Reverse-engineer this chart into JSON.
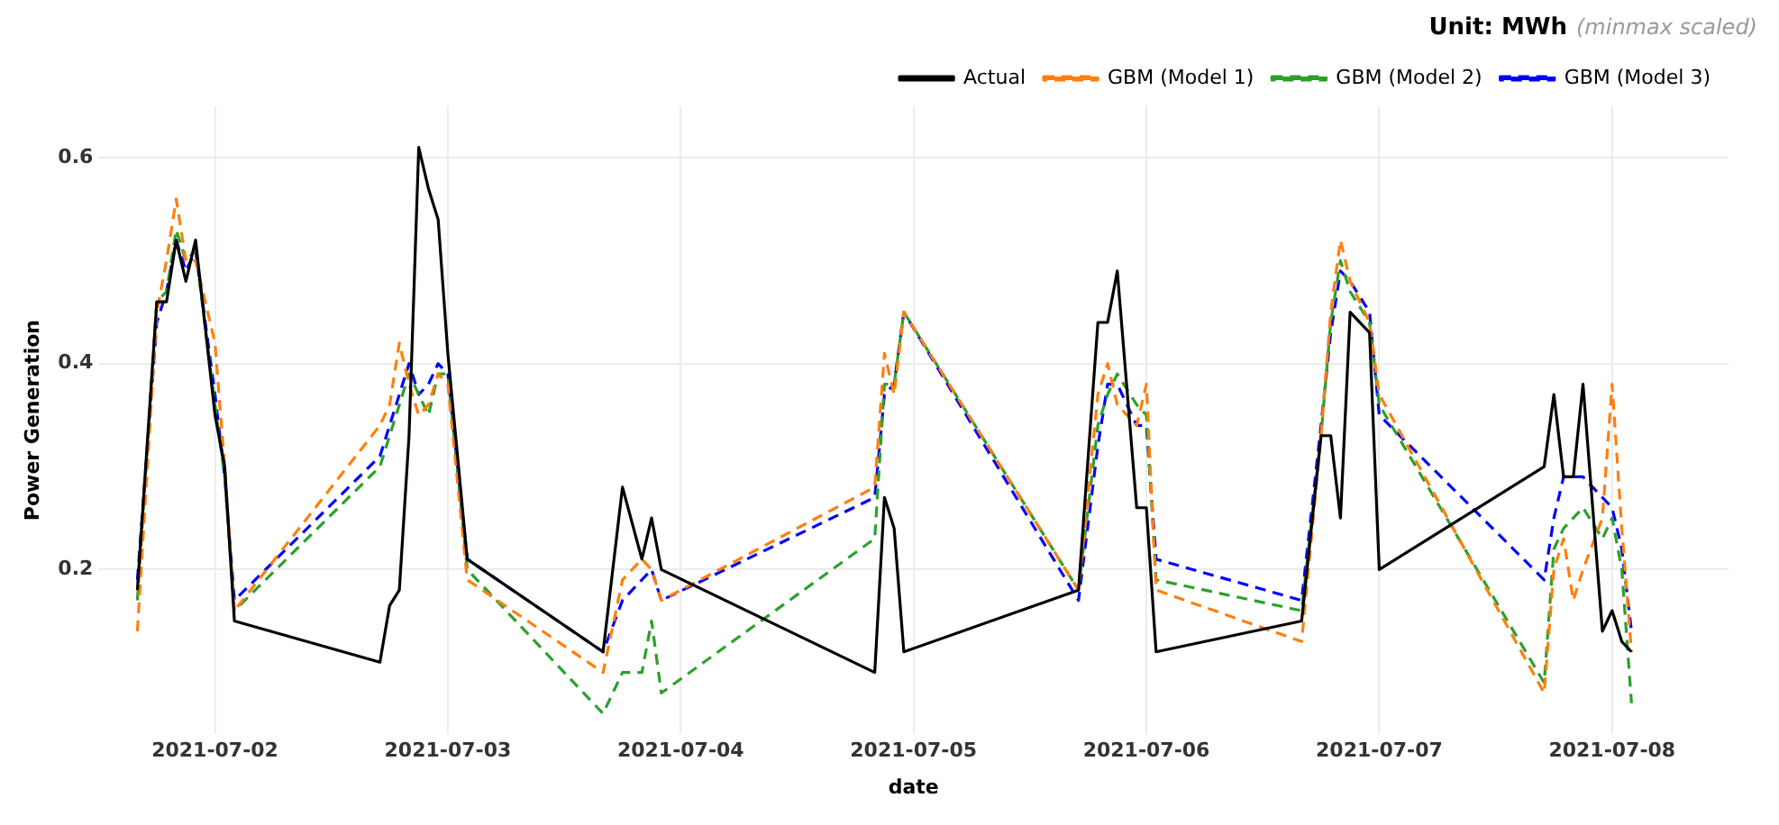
{
  "chart_data": {
    "type": "line",
    "title": "Unit: MWh",
    "subtitle": "(minmax scaled)",
    "xlabel": "date",
    "ylabel": "Power Generation",
    "x": [
      "2021-07-01T16:00",
      "2021-07-01T18:00",
      "2021-07-01T19:00",
      "2021-07-01T20:00",
      "2021-07-01T21:00",
      "2021-07-01T22:00",
      "2021-07-02T00:00",
      "2021-07-02T01:00",
      "2021-07-02T02:00",
      "2021-07-02T17:00",
      "2021-07-02T18:00",
      "2021-07-02T19:00",
      "2021-07-02T20:00",
      "2021-07-02T21:00",
      "2021-07-02T22:00",
      "2021-07-02T23:00",
      "2021-07-03T00:00",
      "2021-07-03T02:00",
      "2021-07-03T16:00",
      "2021-07-03T18:00",
      "2021-07-03T20:00",
      "2021-07-03T21:00",
      "2021-07-03T22:00",
      "2021-07-04T20:00",
      "2021-07-04T21:00",
      "2021-07-04T22:00",
      "2021-07-04T23:00",
      "2021-07-05T17:00",
      "2021-07-05T19:00",
      "2021-07-05T20:00",
      "2021-07-05T21:00",
      "2021-07-05T23:00",
      "2021-07-06T00:00",
      "2021-07-06T01:00",
      "2021-07-06T16:00",
      "2021-07-06T18:00",
      "2021-07-06T19:00",
      "2021-07-06T20:00",
      "2021-07-06T21:00",
      "2021-07-06T23:00",
      "2021-07-07T00:00",
      "2021-07-07T17:00",
      "2021-07-07T18:00",
      "2021-07-07T19:00",
      "2021-07-07T20:00",
      "2021-07-07T21:00",
      "2021-07-07T23:00",
      "2021-07-08T00:00",
      "2021-07-08T01:00",
      "2021-07-08T02:00"
    ],
    "series": [
      {
        "name": "Actual",
        "color": "#000000",
        "line_style": "solid",
        "values": [
          0.18,
          0.46,
          0.46,
          0.52,
          0.48,
          0.52,
          0.35,
          0.3,
          0.15,
          0.11,
          0.165,
          0.18,
          0.33,
          0.61,
          0.57,
          0.54,
          0.41,
          0.21,
          0.12,
          0.28,
          0.21,
          0.25,
          0.2,
          0.1,
          0.27,
          0.24,
          0.12,
          0.18,
          0.44,
          0.44,
          0.49,
          0.26,
          0.26,
          0.12,
          0.15,
          0.33,
          0.33,
          0.25,
          0.45,
          0.43,
          0.2,
          0.3,
          0.37,
          0.29,
          0.29,
          0.38,
          0.14,
          0.16,
          0.13,
          0.12
        ]
      },
      {
        "name": "GBM (Model 1)",
        "color": "#ff7f0e",
        "line_style": "dashed",
        "values": [
          0.14,
          0.45,
          0.5,
          0.56,
          0.5,
          0.5,
          0.42,
          0.3,
          0.16,
          0.34,
          0.36,
          0.42,
          0.38,
          0.35,
          0.36,
          0.39,
          0.38,
          0.19,
          0.1,
          0.19,
          0.21,
          0.2,
          0.17,
          0.28,
          0.41,
          0.37,
          0.45,
          0.18,
          0.37,
          0.4,
          0.36,
          0.34,
          0.38,
          0.18,
          0.13,
          0.33,
          0.45,
          0.52,
          0.48,
          0.44,
          0.37,
          0.08,
          0.2,
          0.23,
          0.17,
          0.2,
          0.25,
          0.38,
          0.24,
          0.12
        ]
      },
      {
        "name": "GBM (Model 2)",
        "color": "#2ca02c",
        "line_style": "dashed",
        "values": [
          0.17,
          0.46,
          0.47,
          0.53,
          0.5,
          0.51,
          0.36,
          0.29,
          0.16,
          0.3,
          0.33,
          0.36,
          0.39,
          0.37,
          0.35,
          0.39,
          0.39,
          0.2,
          0.06,
          0.1,
          0.1,
          0.15,
          0.08,
          0.23,
          0.38,
          0.38,
          0.45,
          0.18,
          0.34,
          0.37,
          0.39,
          0.36,
          0.35,
          0.19,
          0.16,
          0.33,
          0.44,
          0.5,
          0.47,
          0.44,
          0.36,
          0.09,
          0.22,
          0.24,
          0.25,
          0.26,
          0.23,
          0.25,
          0.2,
          0.07
        ]
      },
      {
        "name": "GBM (Model 3)",
        "color": "#0000ff",
        "line_style": "dashed",
        "values": [
          0.19,
          0.44,
          0.47,
          0.52,
          0.49,
          0.51,
          0.37,
          0.29,
          0.17,
          0.31,
          0.34,
          0.37,
          0.4,
          0.37,
          0.38,
          0.4,
          0.39,
          0.21,
          0.12,
          0.17,
          0.19,
          0.2,
          0.17,
          0.27,
          0.37,
          0.38,
          0.45,
          0.17,
          0.32,
          0.38,
          0.38,
          0.34,
          0.34,
          0.21,
          0.17,
          0.34,
          0.43,
          0.49,
          0.48,
          0.45,
          0.35,
          0.19,
          0.25,
          0.29,
          0.29,
          0.29,
          0.27,
          0.26,
          0.22,
          0.14
        ]
      }
    ],
    "xlim": [
      "2021-07-01T12:00",
      "2021-07-08T12:00"
    ],
    "xticks": [
      "2021-07-02",
      "2021-07-03",
      "2021-07-04",
      "2021-07-05",
      "2021-07-06",
      "2021-07-07",
      "2021-07-08"
    ],
    "ylim": [
      0.04,
      0.65
    ],
    "yticks": [
      0.2,
      0.4,
      0.6
    ],
    "grid": true,
    "legend": "top right",
    "marker": "none"
  }
}
